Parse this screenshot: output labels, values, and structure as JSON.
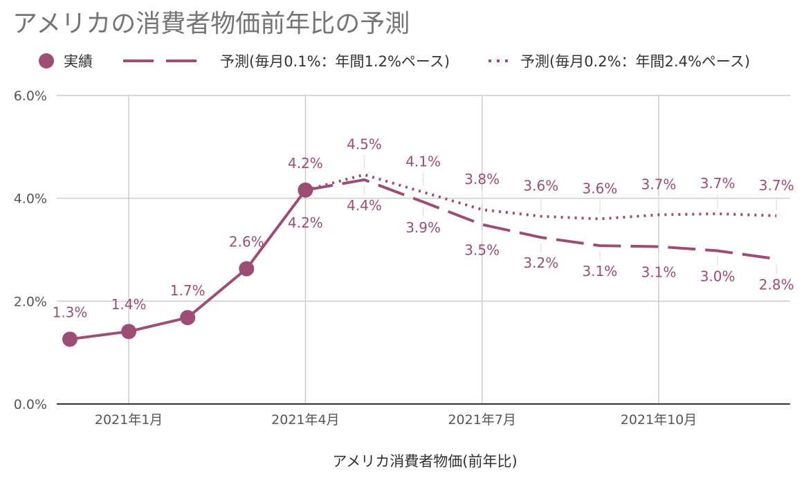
{
  "chart_data": {
    "type": "line",
    "title": "アメリカの消費者物価前年比の予測",
    "xlabel": "アメリカ消費者物価(前年比)",
    "ylabel": "",
    "ylim": [
      0,
      6
    ],
    "yticks": [
      "0.0%",
      "2.0%",
      "4.0%",
      "6.0%"
    ],
    "xticks": [
      {
        "label": "2021年1月",
        "index": 1
      },
      {
        "label": "2021年4月",
        "index": 4
      },
      {
        "label": "2021年7月",
        "index": 7
      },
      {
        "label": "2021年10月",
        "index": 10
      }
    ],
    "grid": true,
    "legend_position": "top",
    "series_color": "#9c4d73",
    "series": [
      {
        "name": "実績",
        "style": "solid-markers",
        "points": [
          {
            "index": 0,
            "value": 1.26,
            "label": "1.3%"
          },
          {
            "index": 1,
            "value": 1.41,
            "label": "1.4%"
          },
          {
            "index": 2,
            "value": 1.68,
            "label": "1.7%"
          },
          {
            "index": 3,
            "value": 2.63,
            "label": "2.6%"
          },
          {
            "index": 4,
            "value": 4.16,
            "label": "4.2%"
          }
        ]
      },
      {
        "name": "予測(毎月0.1%：年間1.2%ペース)",
        "style": "dashed",
        "points": [
          {
            "index": 4,
            "value": 4.16,
            "label": "4.2%"
          },
          {
            "index": 5,
            "value": 4.36,
            "label": "4.4%"
          },
          {
            "index": 6,
            "value": 3.93,
            "label": "3.9%"
          },
          {
            "index": 7,
            "value": 3.49,
            "label": "3.5%"
          },
          {
            "index": 8,
            "value": 3.24,
            "label": "3.2%"
          },
          {
            "index": 9,
            "value": 3.08,
            "label": "3.1%"
          },
          {
            "index": 10,
            "value": 3.06,
            "label": "3.1%"
          },
          {
            "index": 11,
            "value": 2.98,
            "label": "3.0%"
          },
          {
            "index": 12,
            "value": 2.82,
            "label": "2.8%"
          }
        ]
      },
      {
        "name": "予測(毎月0.2%：年間2.4%ペース)",
        "style": "dotted",
        "points": [
          {
            "index": 4,
            "value": 4.16
          },
          {
            "index": 5,
            "value": 4.46,
            "label": "4.5%"
          },
          {
            "index": 6,
            "value": 4.12,
            "label": "4.1%"
          },
          {
            "index": 7,
            "value": 3.78,
            "label": "3.8%"
          },
          {
            "index": 8,
            "value": 3.65,
            "label": "3.6%"
          },
          {
            "index": 9,
            "value": 3.6,
            "label": "3.6%"
          },
          {
            "index": 10,
            "value": 3.68,
            "label": "3.7%"
          },
          {
            "index": 11,
            "value": 3.7,
            "label": "3.7%"
          },
          {
            "index": 12,
            "value": 3.66,
            "label": "3.7%"
          }
        ]
      }
    ]
  }
}
